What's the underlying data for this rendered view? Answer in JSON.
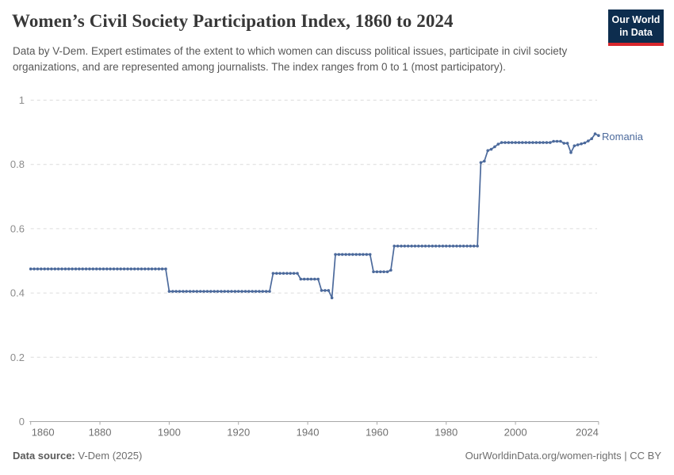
{
  "header": {
    "title": "Women’s Civil Society Participation Index, 1860 to 2024",
    "subtitle": "Data by V-Dem. Expert estimates of the extent to which women can discuss political issues, participate in civil society organizations, and are represented among journalists. The index ranges from 0 to 1 (most participatory).",
    "logo": {
      "line1": "Our World",
      "line2": "in Data",
      "bg_color": "#0d2d4e",
      "bar_color": "#d8262c"
    }
  },
  "chart_data": {
    "type": "line",
    "title": "Women’s Civil Society Participation Index, 1860 to 2024",
    "xlabel": "",
    "ylabel": "",
    "xlim": [
      1860,
      2024
    ],
    "ylim": [
      0,
      1
    ],
    "xticks": [
      1860,
      1880,
      1900,
      1920,
      1940,
      1960,
      1980,
      2000,
      2024
    ],
    "yticks": [
      0,
      0.2,
      0.4,
      0.6,
      0.8,
      1
    ],
    "grid": "horizontal-dashed",
    "legend_position": "line-end-label",
    "colors": {
      "line": "#4C6A9C",
      "grid": "#dcdcdc",
      "axis": "#a8a8a8",
      "ytick_label": "#8c8c8c",
      "xtick_label": "#707070"
    },
    "series": [
      {
        "name": "Romania",
        "color": "#4C6A9C",
        "points": [
          [
            1860,
            0.475
          ],
          [
            1861,
            0.475
          ],
          [
            1862,
            0.475
          ],
          [
            1863,
            0.475
          ],
          [
            1864,
            0.475
          ],
          [
            1865,
            0.475
          ],
          [
            1866,
            0.475
          ],
          [
            1867,
            0.475
          ],
          [
            1868,
            0.475
          ],
          [
            1869,
            0.475
          ],
          [
            1870,
            0.475
          ],
          [
            1871,
            0.475
          ],
          [
            1872,
            0.475
          ],
          [
            1873,
            0.475
          ],
          [
            1874,
            0.475
          ],
          [
            1875,
            0.475
          ],
          [
            1876,
            0.475
          ],
          [
            1877,
            0.475
          ],
          [
            1878,
            0.475
          ],
          [
            1879,
            0.475
          ],
          [
            1880,
            0.475
          ],
          [
            1881,
            0.475
          ],
          [
            1882,
            0.475
          ],
          [
            1883,
            0.475
          ],
          [
            1884,
            0.475
          ],
          [
            1885,
            0.475
          ],
          [
            1886,
            0.475
          ],
          [
            1887,
            0.475
          ],
          [
            1888,
            0.475
          ],
          [
            1889,
            0.475
          ],
          [
            1890,
            0.475
          ],
          [
            1891,
            0.475
          ],
          [
            1892,
            0.475
          ],
          [
            1893,
            0.475
          ],
          [
            1894,
            0.475
          ],
          [
            1895,
            0.475
          ],
          [
            1896,
            0.475
          ],
          [
            1897,
            0.475
          ],
          [
            1898,
            0.475
          ],
          [
            1899,
            0.475
          ],
          [
            1900,
            0.405
          ],
          [
            1901,
            0.405
          ],
          [
            1902,
            0.405
          ],
          [
            1903,
            0.405
          ],
          [
            1904,
            0.405
          ],
          [
            1905,
            0.405
          ],
          [
            1906,
            0.405
          ],
          [
            1907,
            0.405
          ],
          [
            1908,
            0.405
          ],
          [
            1909,
            0.405
          ],
          [
            1910,
            0.405
          ],
          [
            1911,
            0.405
          ],
          [
            1912,
            0.405
          ],
          [
            1913,
            0.405
          ],
          [
            1914,
            0.405
          ],
          [
            1915,
            0.405
          ],
          [
            1916,
            0.405
          ],
          [
            1917,
            0.405
          ],
          [
            1918,
            0.405
          ],
          [
            1919,
            0.405
          ],
          [
            1920,
            0.405
          ],
          [
            1921,
            0.405
          ],
          [
            1922,
            0.405
          ],
          [
            1923,
            0.405
          ],
          [
            1924,
            0.405
          ],
          [
            1925,
            0.405
          ],
          [
            1926,
            0.405
          ],
          [
            1927,
            0.405
          ],
          [
            1928,
            0.405
          ],
          [
            1929,
            0.405
          ],
          [
            1930,
            0.461
          ],
          [
            1931,
            0.461
          ],
          [
            1932,
            0.461
          ],
          [
            1933,
            0.461
          ],
          [
            1934,
            0.461
          ],
          [
            1935,
            0.461
          ],
          [
            1936,
            0.461
          ],
          [
            1937,
            0.461
          ],
          [
            1938,
            0.443
          ],
          [
            1939,
            0.443
          ],
          [
            1940,
            0.443
          ],
          [
            1941,
            0.443
          ],
          [
            1942,
            0.443
          ],
          [
            1943,
            0.443
          ],
          [
            1944,
            0.408
          ],
          [
            1945,
            0.408
          ],
          [
            1946,
            0.408
          ],
          [
            1947,
            0.385
          ],
          [
            1948,
            0.52
          ],
          [
            1949,
            0.52
          ],
          [
            1950,
            0.52
          ],
          [
            1951,
            0.52
          ],
          [
            1952,
            0.52
          ],
          [
            1953,
            0.52
          ],
          [
            1954,
            0.52
          ],
          [
            1955,
            0.52
          ],
          [
            1956,
            0.52
          ],
          [
            1957,
            0.52
          ],
          [
            1958,
            0.52
          ],
          [
            1959,
            0.466
          ],
          [
            1960,
            0.466
          ],
          [
            1961,
            0.466
          ],
          [
            1962,
            0.466
          ],
          [
            1963,
            0.466
          ],
          [
            1964,
            0.471
          ],
          [
            1965,
            0.546
          ],
          [
            1966,
            0.546
          ],
          [
            1967,
            0.546
          ],
          [
            1968,
            0.546
          ],
          [
            1969,
            0.546
          ],
          [
            1970,
            0.546
          ],
          [
            1971,
            0.546
          ],
          [
            1972,
            0.546
          ],
          [
            1973,
            0.546
          ],
          [
            1974,
            0.546
          ],
          [
            1975,
            0.546
          ],
          [
            1976,
            0.546
          ],
          [
            1977,
            0.546
          ],
          [
            1978,
            0.546
          ],
          [
            1979,
            0.546
          ],
          [
            1980,
            0.546
          ],
          [
            1981,
            0.546
          ],
          [
            1982,
            0.546
          ],
          [
            1983,
            0.546
          ],
          [
            1984,
            0.546
          ],
          [
            1985,
            0.546
          ],
          [
            1986,
            0.546
          ],
          [
            1987,
            0.546
          ],
          [
            1988,
            0.546
          ],
          [
            1989,
            0.546
          ],
          [
            1990,
            0.806
          ],
          [
            1991,
            0.81
          ],
          [
            1992,
            0.843
          ],
          [
            1993,
            0.847
          ],
          [
            1994,
            0.855
          ],
          [
            1995,
            0.863
          ],
          [
            1996,
            0.868
          ],
          [
            1997,
            0.868
          ],
          [
            1998,
            0.868
          ],
          [
            1999,
            0.868
          ],
          [
            2000,
            0.868
          ],
          [
            2001,
            0.868
          ],
          [
            2002,
            0.868
          ],
          [
            2003,
            0.868
          ],
          [
            2004,
            0.868
          ],
          [
            2005,
            0.868
          ],
          [
            2006,
            0.868
          ],
          [
            2007,
            0.868
          ],
          [
            2008,
            0.868
          ],
          [
            2009,
            0.868
          ],
          [
            2010,
            0.868
          ],
          [
            2011,
            0.872
          ],
          [
            2012,
            0.872
          ],
          [
            2013,
            0.872
          ],
          [
            2014,
            0.866
          ],
          [
            2015,
            0.866
          ],
          [
            2016,
            0.837
          ],
          [
            2017,
            0.858
          ],
          [
            2018,
            0.861
          ],
          [
            2019,
            0.864
          ],
          [
            2020,
            0.867
          ],
          [
            2021,
            0.873
          ],
          [
            2022,
            0.88
          ],
          [
            2023,
            0.895
          ],
          [
            2024,
            0.89
          ]
        ]
      }
    ]
  },
  "footer": {
    "source_label": "Data source:",
    "source_value": "V-Dem (2025)",
    "right_text": "OurWorldinData.org/women-rights | CC BY"
  }
}
